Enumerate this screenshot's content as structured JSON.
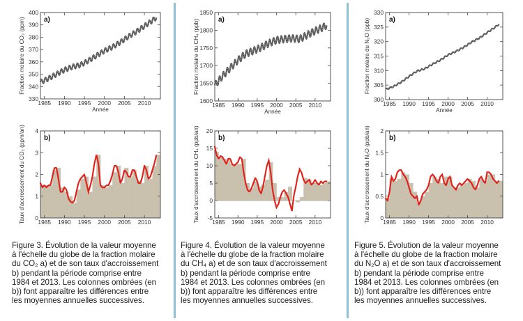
{
  "figures": [
    {
      "caption_lines": [
        "Figure 3. Évolution de la valeur moyenne",
        "à l'échelle du globe de la fraction molaire",
        "du CO₂ a) et de son taux d'accroissement",
        "b) pendant la période comprise entre",
        "1984 et 2013. Les colonnes ombrées (en",
        "b)) font apparaître les différences entre",
        "les moyennes annuelles successives."
      ]
    },
    {
      "caption_lines": [
        "Figure 4. Évolution de la valeur moyenne",
        "à l'échelle du globe de la fraction molaire",
        "du CH₄ a) et de son taux d'accroissement",
        "b) pendant la période comprise entre",
        "1984 et 2013. Les colonnes ombrées (en",
        "b)) font apparaître les différences entre",
        "les moyennes annuelles successives."
      ]
    },
    {
      "caption_lines": [
        "Figure 5. Évolution de la valeur moyenne",
        "à l'échelle du globe de la fraction molaire",
        "du N₂O a) et de son taux d'accroissement",
        "b) pendant la période comprise entre",
        "1984 et 2013. Les colonnes ombrées (en",
        "b)) font apparaître les différences entre",
        "les moyennes annuelles successives."
      ]
    }
  ],
  "colors": {
    "line_gray": "#555555",
    "rate_red": "#e0221c",
    "bar_fill": "#c9c0ad",
    "frame": "#444444",
    "divider": "#8fc1d6"
  },
  "chart_data": [
    {
      "id": "co2-a",
      "type": "line",
      "panel_label": "a)",
      "xlabel": "Année",
      "ylabel": "Fraction molaire du CO₂ (ppm)",
      "xlim": [
        1984,
        2014
      ],
      "ylim": [
        330,
        400
      ],
      "xticks": [
        1985,
        1990,
        1995,
        2000,
        2005,
        2010
      ],
      "yticks": [
        330,
        340,
        350,
        360,
        370,
        380,
        390,
        400
      ],
      "seasonal_amplitude": 2.0,
      "series": [
        {
          "x": [
            1984,
            1986,
            1988,
            1990,
            1992,
            1994,
            1996,
            1998,
            2000,
            2002,
            2004,
            2006,
            2008,
            2010,
            2012,
            2013
          ],
          "y": [
            343.5,
            346.5,
            350,
            353.5,
            356,
            357.5,
            361,
            365,
            369,
            372,
            376,
            380.5,
            384.5,
            389,
            393.5,
            396
          ]
        }
      ]
    },
    {
      "id": "co2-b",
      "type": "bar",
      "panel_label": "b)",
      "xlabel": "",
      "ylabel": "Taux d'accroissement du CO₂ (ppm/an)",
      "xlim": [
        1984,
        2014
      ],
      "ylim": [
        0,
        4
      ],
      "xticks": [
        1985,
        1990,
        1995,
        2000,
        2005,
        2010
      ],
      "yticks": [
        0,
        1,
        2,
        3,
        4
      ],
      "years": [
        1984,
        1985,
        1986,
        1987,
        1988,
        1989,
        1990,
        1991,
        1992,
        1993,
        1994,
        1995,
        1996,
        1997,
        1998,
        1999,
        2000,
        2001,
        2002,
        2003,
        2004,
        2005,
        2006,
        2007,
        2008,
        2009,
        2010,
        2011,
        2012,
        2013
      ],
      "annual_increase": [
        1.5,
        1.5,
        1.5,
        2.2,
        2.3,
        1.4,
        1.2,
        1.0,
        0.7,
        1.3,
        1.8,
        1.9,
        1.2,
        1.9,
        2.9,
        1.5,
        1.4,
        1.5,
        2.1,
        2.4,
        1.6,
        2.3,
        1.9,
        2.2,
        1.7,
        1.6,
        2.4,
        1.8,
        2.4,
        2.9
      ],
      "rate": {
        "x": [
          1984,
          1984.5,
          1985,
          1985.5,
          1986,
          1986.5,
          1987,
          1987.5,
          1988,
          1988.5,
          1989,
          1989.5,
          1990,
          1990.5,
          1991,
          1991.5,
          1992,
          1992.5,
          1993,
          1993.5,
          1994,
          1994.5,
          1995,
          1995.5,
          1996,
          1996.5,
          1997,
          1997.5,
          1998,
          1998.5,
          1999,
          1999.5,
          2000,
          2000.5,
          2001,
          2001.5,
          2002,
          2002.5,
          2003,
          2003.5,
          2004,
          2004.5,
          2005,
          2005.5,
          2006,
          2006.5,
          2007,
          2007.5,
          2008,
          2008.5,
          2009,
          2009.5,
          2010,
          2010.5,
          2011,
          2011.5,
          2012,
          2012.5,
          2013
        ],
        "y": [
          1.6,
          1.4,
          1.5,
          1.4,
          1.5,
          1.5,
          1.9,
          2.3,
          2.3,
          1.8,
          1.2,
          1.2,
          1.4,
          1.3,
          0.9,
          0.75,
          0.7,
          0.8,
          1.2,
          1.6,
          1.8,
          1.9,
          2.0,
          1.6,
          1.2,
          1.5,
          1.9,
          2.5,
          2.9,
          2.5,
          1.5,
          1.4,
          1.4,
          1.5,
          1.5,
          1.7,
          2.0,
          2.4,
          2.4,
          2.1,
          1.6,
          1.8,
          2.2,
          2.1,
          1.9,
          1.9,
          2.2,
          2.2,
          1.9,
          1.6,
          1.6,
          1.9,
          2.4,
          2.2,
          1.8,
          1.9,
          2.2,
          2.5,
          2.9
        ]
      }
    },
    {
      "id": "ch4-a",
      "type": "line",
      "panel_label": "a)",
      "xlabel": "Année",
      "ylabel": "Fraction molaire du CH₄ (ppb)",
      "xlim": [
        1984,
        2014
      ],
      "ylim": [
        1600,
        1850
      ],
      "xticks": [
        1985,
        1990,
        1995,
        2000,
        2005,
        2010
      ],
      "yticks": [
        1600,
        1650,
        1700,
        1750,
        1800,
        1850
      ],
      "seasonal_amplitude": 10,
      "series": [
        {
          "x": [
            1984,
            1986,
            1988,
            1990,
            1992,
            1994,
            1996,
            1998,
            2000,
            2002,
            2004,
            2006,
            2008,
            2010,
            2012,
            2013
          ],
          "y": [
            1644,
            1670,
            1693,
            1715,
            1733,
            1742,
            1751,
            1763,
            1772,
            1775,
            1777,
            1775,
            1787,
            1798,
            1808,
            1814
          ]
        }
      ]
    },
    {
      "id": "ch4-b",
      "type": "bar",
      "panel_label": "b)",
      "xlabel": "",
      "ylabel": "Taux d'accroissement du CH₄ (ppb/an)",
      "xlim": [
        1984,
        2014
      ],
      "ylim": [
        -5,
        20
      ],
      "xticks": [
        1985,
        1990,
        1995,
        2000,
        2005,
        2010
      ],
      "yticks": [
        -5,
        0,
        5,
        10,
        15,
        20
      ],
      "years": [
        1984,
        1985,
        1986,
        1987,
        1988,
        1989,
        1990,
        1991,
        1992,
        1993,
        1994,
        1995,
        1996,
        1997,
        1998,
        1999,
        2000,
        2001,
        2002,
        2003,
        2004,
        2005,
        2006,
        2007,
        2008,
        2009,
        2010,
        2011,
        2012,
        2013
      ],
      "annual_increase": [
        14,
        12.5,
        12,
        11.5,
        10.5,
        10.5,
        10.5,
        12,
        5,
        3.5,
        5.5,
        4,
        4.5,
        6,
        11,
        5,
        1,
        1,
        2.5,
        4,
        0,
        -0.5,
        1,
        6.5,
        6,
        5,
        5,
        4.5,
        5,
        5.5
      ],
      "rate": {
        "x": [
          1984,
          1984.5,
          1985,
          1985.5,
          1986,
          1986.5,
          1987,
          1987.5,
          1988,
          1988.5,
          1989,
          1989.5,
          1990,
          1990.5,
          1991,
          1991.5,
          1992,
          1992.5,
          1993,
          1993.5,
          1994,
          1994.5,
          1995,
          1995.5,
          1996,
          1996.5,
          1997,
          1997.5,
          1998,
          1998.5,
          1999,
          1999.5,
          2000,
          2000.5,
          2001,
          2001.5,
          2002,
          2002.5,
          2003,
          2003.5,
          2004,
          2004.5,
          2005,
          2005.5,
          2006,
          2006.5,
          2007,
          2007.5,
          2008,
          2008.5,
          2009,
          2009.5,
          2010,
          2010.5,
          2011,
          2011.5,
          2012,
          2012.5,
          2013
        ],
        "y": [
          15.5,
          13,
          12,
          12.8,
          12.5,
          11.5,
          10.5,
          12,
          12,
          10.5,
          10,
          10.5,
          11,
          12.5,
          12,
          8,
          5,
          3,
          2.5,
          3.5,
          5,
          6.5,
          5.5,
          3,
          2,
          4,
          7,
          10,
          11.5,
          8,
          3,
          0,
          -2,
          -1,
          1,
          2.5,
          3,
          2,
          1,
          -1,
          -3,
          1.5,
          4,
          7,
          9,
          8,
          6,
          5,
          5.5,
          6,
          4.5,
          5,
          6,
          5,
          4.5,
          5.5,
          5,
          5.5,
          5.5
        ]
      }
    },
    {
      "id": "n2o-a",
      "type": "line",
      "panel_label": "a)",
      "xlabel": "Année",
      "ylabel": "Fraction molaire du N₂O (ppb)",
      "xlim": [
        1984,
        2014
      ],
      "ylim": [
        300,
        330
      ],
      "xticks": [
        1985,
        1990,
        1995,
        2000,
        2005,
        2010
      ],
      "yticks": [
        300,
        305,
        310,
        315,
        320,
        325,
        330
      ],
      "seasonal_amplitude": 0.25,
      "series": [
        {
          "x": [
            1984,
            1986,
            1988,
            1990,
            1992,
            1994,
            1996,
            1998,
            2000,
            2002,
            2004,
            2006,
            2008,
            2010,
            2012,
            2013
          ],
          "y": [
            303.5,
            304.5,
            306,
            308,
            309.8,
            310.6,
            312.2,
            313.6,
            315.4,
            316.6,
            318,
            319.8,
            321.2,
            323.1,
            324.9,
            326
          ]
        }
      ]
    },
    {
      "id": "n2o-b",
      "type": "bar",
      "panel_label": "b)",
      "xlabel": "",
      "ylabel": "Taux d'accroissement du N₂O (ppb/an)",
      "xlim": [
        1984,
        2014
      ],
      "ylim": [
        0,
        2
      ],
      "xticks": [
        1985,
        1990,
        1995,
        2000,
        2005,
        2010
      ],
      "yticks": [
        0,
        0.5,
        1,
        1.5,
        2
      ],
      "years": [
        1984,
        1985,
        1986,
        1987,
        1988,
        1989,
        1990,
        1991,
        1992,
        1993,
        1994,
        1995,
        1996,
        1997,
        1998,
        1999,
        2000,
        2001,
        2002,
        2003,
        2004,
        2005,
        2006,
        2007,
        2008,
        2009,
        2010,
        2011,
        2012,
        2013
      ],
      "annual_increase": [
        0.45,
        0.9,
        0.85,
        0.9,
        1.05,
        1.0,
        0.8,
        0.6,
        0.35,
        0.5,
        0.6,
        0.8,
        0.95,
        0.9,
        0.8,
        0.95,
        0.95,
        0.7,
        0.7,
        0.75,
        0.8,
        0.9,
        0.85,
        0.7,
        0.9,
        0.85,
        1.0,
        1.0,
        0.85,
        0.85
      ],
      "rate": {
        "x": [
          1984,
          1984.5,
          1985,
          1985.5,
          1986,
          1986.5,
          1987,
          1987.5,
          1988,
          1988.5,
          1989,
          1989.5,
          1990,
          1990.5,
          1991,
          1991.5,
          1992,
          1992.5,
          1993,
          1993.5,
          1994,
          1994.5,
          1995,
          1995.5,
          1996,
          1996.5,
          1997,
          1997.5,
          1998,
          1998.5,
          1999,
          1999.5,
          2000,
          2000.5,
          2001,
          2001.5,
          2002,
          2002.5,
          2003,
          2003.5,
          2004,
          2004.5,
          2005,
          2005.5,
          2006,
          2006.5,
          2007,
          2007.5,
          2008,
          2008.5,
          2009,
          2009.5,
          2010,
          2010.5,
          2011,
          2011.5,
          2012,
          2012.5,
          2013
        ],
        "y": [
          0.45,
          0.4,
          0.6,
          0.95,
          0.85,
          0.9,
          1.05,
          1.1,
          1.1,
          1.0,
          0.95,
          0.85,
          0.7,
          0.55,
          0.5,
          0.45,
          0.5,
          0.3,
          0.4,
          0.55,
          0.6,
          0.65,
          0.75,
          0.95,
          1.0,
          0.95,
          0.85,
          0.8,
          0.95,
          1.0,
          0.8,
          0.75,
          0.9,
          0.95,
          0.75,
          0.7,
          0.65,
          0.75,
          0.8,
          0.75,
          0.8,
          0.85,
          0.9,
          0.85,
          0.8,
          0.7,
          0.65,
          0.75,
          0.9,
          0.95,
          0.85,
          0.8,
          1.05,
          1.05,
          1.0,
          0.9,
          0.85,
          0.8,
          0.85
        ]
      }
    }
  ]
}
